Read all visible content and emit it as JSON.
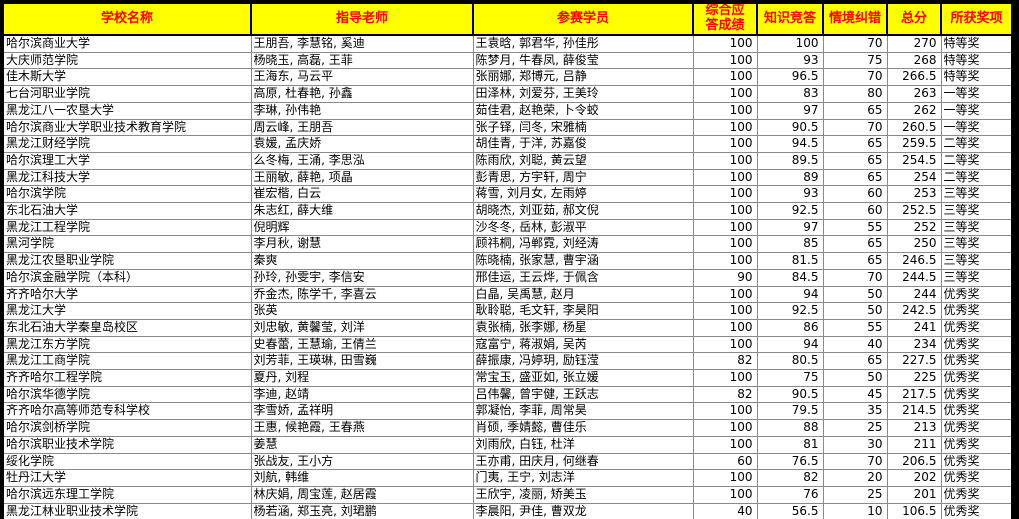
{
  "table": {
    "headers": [
      "学校名称",
      "指导老师",
      "参赛学员",
      "综合应\n答成绩",
      "知识竞答",
      "情境纠错",
      "总分",
      "所获奖项"
    ],
    "rows": [
      [
        "哈尔滨商业大学",
        "王朋吾, 李慧铭, 奚迪",
        "王袁晗, 郭君华, 孙佳彤",
        "100",
        "100",
        "70",
        "270",
        "特等奖"
      ],
      [
        "大庆师范学院",
        "杨晓玉, 高磊, 王菲",
        "陈梦月, 牛春凤, 薛俊莹",
        "100",
        "93",
        "75",
        "268",
        "特等奖"
      ],
      [
        "佳木斯大学",
        "王海东, 马云平",
        "张丽娜, 郑博元, 吕静",
        "100",
        "96.5",
        "70",
        "266.5",
        "特等奖"
      ],
      [
        "七台河职业学院",
        "高原, 杜春艳, 孙鑫",
        "田泽林, 刘爱芬, 王美玲",
        "100",
        "83",
        "80",
        "263",
        "一等奖"
      ],
      [
        "黑龙江八一农垦大学",
        "李琳, 孙伟艳",
        "茹佳君, 赵艳荣, 卜令蛟",
        "100",
        "97",
        "65",
        "262",
        "一等奖"
      ],
      [
        "哈尔滨商业大学职业技术教育学院",
        "周云峰, 王朋吾",
        "张子铎, 闫冬, 宋雅楠",
        "100",
        "90.5",
        "70",
        "260.5",
        "一等奖"
      ],
      [
        "黑龙江财经学院",
        "袁媛, 孟庆娇",
        "胡佳青, 于洋, 苏嘉俊",
        "100",
        "94.5",
        "65",
        "259.5",
        "二等奖"
      ],
      [
        "哈尔滨理工大学",
        "么冬梅, 王涌, 李思泓",
        "陈雨欣, 刘聪, 黄云望",
        "100",
        "89.5",
        "65",
        "254.5",
        "二等奖"
      ],
      [
        "黑龙江科技大学",
        "王丽敏, 薛艳, 项晶",
        "彭青思, 方宇轩, 周宁",
        "100",
        "89",
        "65",
        "254",
        "二等奖"
      ],
      [
        "哈尔滨学院",
        "崔宏楷, 白云",
        "蒋雪, 刘月女, 左雨婷",
        "100",
        "93",
        "60",
        "253",
        "三等奖"
      ],
      [
        "东北石油大学",
        "朱志红, 薛大维",
        "胡晓杰, 刘亚茹, 郝文倪",
        "100",
        "92.5",
        "60",
        "252.5",
        "三等奖"
      ],
      [
        "黑龙江工程学院",
        "倪明辉",
        "沙冬冬, 岳林, 彭淑平",
        "100",
        "97",
        "55",
        "252",
        "三等奖"
      ],
      [
        "黑河学院",
        "李月秋, 谢慧",
        "顾祎桐, 冯郸霓, 刘经涛",
        "100",
        "85",
        "65",
        "250",
        "三等奖"
      ],
      [
        "黑龙江农垦职业学院",
        "秦爽",
        "陈晓楠, 张家慧, 曹宇涵",
        "100",
        "81.5",
        "65",
        "246.5",
        "三等奖"
      ],
      [
        "哈尔滨金融学院（本科）",
        "孙玲, 孙雯宇, 李信安",
        "邢佳运, 王云烨, 于佩含",
        "90",
        "84.5",
        "70",
        "244.5",
        "三等奖"
      ],
      [
        "齐齐哈尔大学",
        "乔金杰, 陈学千, 李喜云",
        "白晶, 吴禹慧, 赵月",
        "100",
        "94",
        "50",
        "244",
        "优秀奖"
      ],
      [
        "黑龙江大学",
        "张英",
        "耿聆聪, 毛文轩, 李昊阳",
        "100",
        "92.5",
        "50",
        "242.5",
        "优秀奖"
      ],
      [
        "东北石油大学秦皇岛校区",
        "刘忠敏, 黄馨莹, 刘洋",
        "袁张楠, 张李娜, 杨星",
        "100",
        "86",
        "55",
        "241",
        "优秀奖"
      ],
      [
        "黑龙江东方学院",
        "史春蕾, 王慧瑜, 王倩兰",
        "寇富宁, 蒋淑娟, 吴芮",
        "100",
        "94",
        "40",
        "234",
        "优秀奖"
      ],
      [
        "黑龙江工商学院",
        "刘芳菲, 王瑛琳, 田雪巍",
        "薛振康, 冯婷玥, 励钰滢",
        "82",
        "80.5",
        "65",
        "227.5",
        "优秀奖"
      ],
      [
        "齐齐哈尔工程学院",
        "夏丹, 刘程",
        "常宝玉, 盛亚如, 张立媛",
        "100",
        "75",
        "50",
        "225",
        "优秀奖"
      ],
      [
        "哈尔滨华德学院",
        "李迪, 赵靖",
        "吕伟馨, 曾宇健, 王跃志",
        "82",
        "90.5",
        "45",
        "217.5",
        "优秀奖"
      ],
      [
        "齐齐哈尔高等师范专科学校",
        "李雪娇, 孟祥明",
        "郭凝怡, 李菲, 周常昊",
        "100",
        "79.5",
        "35",
        "214.5",
        "优秀奖"
      ],
      [
        "哈尔滨剑桥学院",
        "王惠, 候艳霞, 王春燕",
        "肖硕, 季婧懿, 曹佳乐",
        "100",
        "88",
        "25",
        "213",
        "优秀奖"
      ],
      [
        "哈尔滨职业技术学院",
        "姜慧",
        "刘雨欣, 白钰, 杜洋",
        "100",
        "81",
        "30",
        "211",
        "优秀奖"
      ],
      [
        "绥化学院",
        "张战友, 王小方",
        "王亦甫, 田庆月, 何继春",
        "60",
        "76.5",
        "70",
        "206.5",
        "优秀奖"
      ],
      [
        "牡丹江大学",
        "刘航, 韩维",
        "门夷, 王宁, 刘志洋",
        "100",
        "82",
        "20",
        "202",
        "优秀奖"
      ],
      [
        "哈尔滨远东理工学院",
        "林庆娟, 周宝莲, 赵居霞",
        "王欣宇, 凌丽, 矫美玉",
        "100",
        "76",
        "25",
        "201",
        "优秀奖"
      ],
      [
        "黑龙江林业职业技术学院",
        "杨若涵, 郑玉亮, 刘珺鹏",
        "李晨阳, 尹佳, 曹双龙",
        "40",
        "56.5",
        "10",
        "106.5",
        "优秀奖"
      ]
    ],
    "colors": {
      "header_bg": "#ffff00",
      "header_text": "#ff0000",
      "grid_line": "#8a8a8a",
      "outer_border": "#000000",
      "cell_bg": "#ffffff",
      "cell_text": "#000000"
    }
  }
}
